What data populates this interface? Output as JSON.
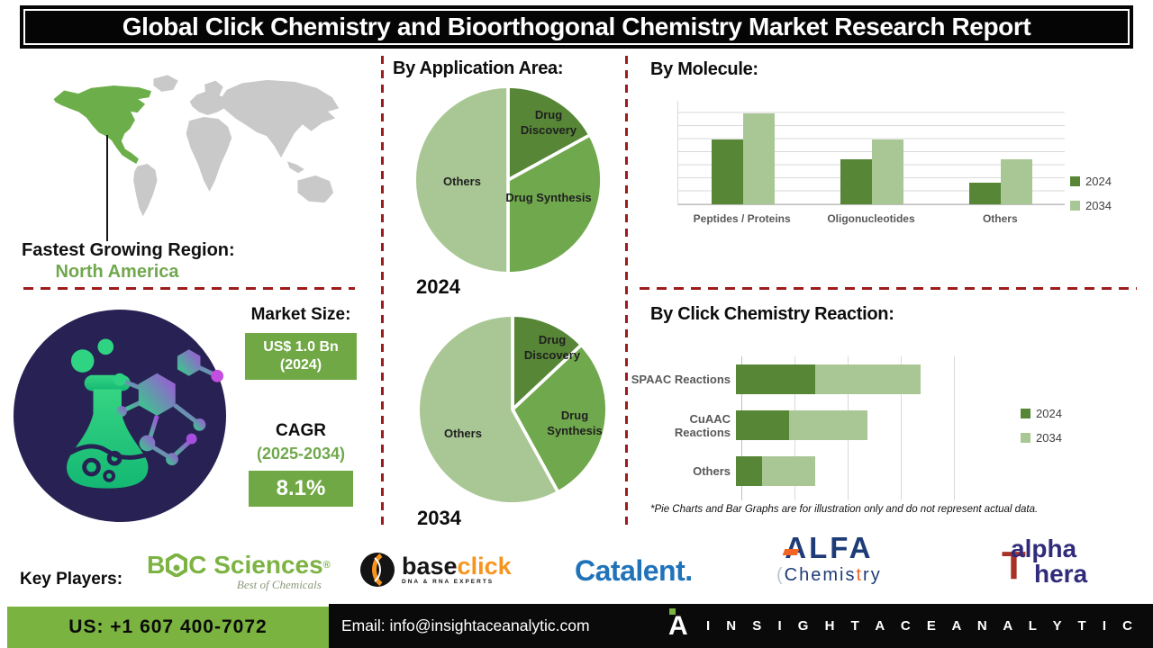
{
  "title": "Global Click Chemistry and Bioorthogonal Chemistry Market Research Report",
  "region": {
    "label": "Fastest Growing Region:",
    "value": "North America"
  },
  "market": {
    "size_label": "Market Size:",
    "size_value": "US$ 1.0 Bn",
    "size_year": "(2024)",
    "cagr_label": "CAGR",
    "cagr_period": "(2025-2034)",
    "cagr_value": "8.1%"
  },
  "sections": {
    "application": "By Application Area:",
    "molecule": "By Molecule:",
    "reaction": "By Click Chemistry Reaction:"
  },
  "disclaimer": "*Pie Charts and Bar Graphs are for illustration only and do not represent actual data.",
  "key_players": {
    "label": "Key Players:",
    "boc": {
      "b": "B",
      "rest": "C Sciences",
      "reg": "®",
      "tagline": "Best of Chemicals"
    },
    "baseclick": {
      "base": "base",
      "click": "click",
      "tagline": "DNA & RNA EXPERTS"
    },
    "catalent": "Catalent.",
    "alfa": {
      "main": "ALFA",
      "sub_pre": "(",
      "sub_1": "Chemis",
      "sub_t": "t",
      "sub_2": "ry"
    },
    "alphathera": {
      "line1": "alpha",
      "t": "T",
      "line2": "hera"
    }
  },
  "footer": {
    "phone": "US: +1 607 400-7072",
    "email": "Email: info@insightaceanalytic.com",
    "brand_letter": "A",
    "brand": "I N S I G H T   A C E   A N A L Y T I C"
  },
  "colors": {
    "dark_green": "#568636",
    "mid_green": "#70a84d",
    "light_green": "#a9c794",
    "map_green": "#6cae49",
    "box_green": "#70a845",
    "footer_green": "#7ab33f",
    "dash_red": "#9e1b1b",
    "navy": "#272253"
  },
  "chart_data": [
    {
      "id": "application-2024",
      "type": "pie",
      "title": "2024",
      "labels": [
        "Drug Discovery",
        "Drug Synthesis",
        "Others"
      ],
      "values": [
        17,
        33,
        50
      ],
      "colors": [
        "#568636",
        "#70a84d",
        "#a9c794"
      ],
      "start_angle": 0
    },
    {
      "id": "application-2034",
      "type": "pie",
      "title": "2034",
      "labels": [
        "Drug Discovery",
        "Drug Synthesis",
        "Others"
      ],
      "values": [
        13,
        29,
        58
      ],
      "colors": [
        "#568636",
        "#70a84d",
        "#a9c794"
      ],
      "start_angle": 0
    },
    {
      "id": "molecule",
      "type": "bar",
      "title": "By Molecule:",
      "categories": [
        "Peptides / Proteins",
        "Oligonucleotides",
        "Others"
      ],
      "series": [
        {
          "name": "2024",
          "values": [
            5,
            3.5,
            1.7
          ]
        },
        {
          "name": "2034",
          "values": [
            7,
            5,
            3.5
          ]
        }
      ],
      "ylim": [
        0,
        8
      ],
      "grid": true,
      "legend_position": "right"
    },
    {
      "id": "reaction",
      "type": "bar-horizontal-stacked",
      "title": "By Click Chemistry Reaction:",
      "categories": [
        "SPAAC Reactions",
        "CuAAC Reactions",
        "Others"
      ],
      "series": [
        {
          "name": "2024",
          "values": [
            1.5,
            1.0,
            0.5
          ]
        },
        {
          "name": "2034",
          "values": [
            2.0,
            1.5,
            1.0
          ]
        }
      ],
      "xlim": [
        0,
        4.25
      ],
      "grid": true,
      "legend_position": "right"
    }
  ]
}
